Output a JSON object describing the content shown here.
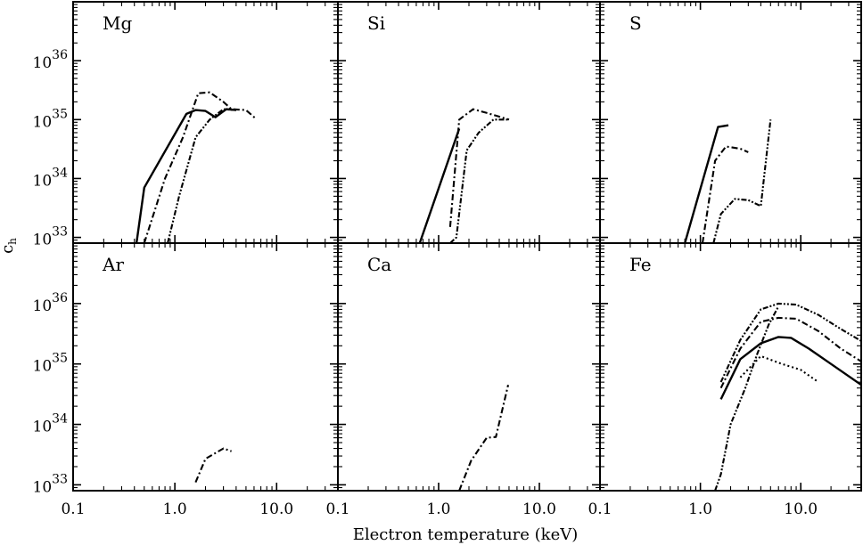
{
  "figure": {
    "xlabel": "Electron temperature (keV)",
    "ylabel": "c",
    "ylabel_sub": "h"
  },
  "chart_data": {
    "type": "line",
    "xlabel": "Electron temperature (keV)",
    "ylabel": "c_h",
    "xscale": "log",
    "yscale": "log",
    "xlim": [
      0.1,
      40
    ],
    "ylim": [
      8e+32,
      1e+37
    ],
    "x_tick_labels": [
      "0.1",
      "1.0",
      "10.0"
    ],
    "y_tick_labels": [
      {
        "base": "10",
        "exp": "33"
      },
      {
        "base": "10",
        "exp": "34"
      },
      {
        "base": "10",
        "exp": "35"
      },
      {
        "base": "10",
        "exp": "36"
      }
    ],
    "grid": false,
    "legend": "none",
    "panels": [
      {
        "label": "Mg",
        "series": [
          {
            "style": "solid",
            "points": [
              [
                0.42,
                8e+32
              ],
              [
                0.5,
                7e+33
              ],
              [
                1.3,
                1.25e+35
              ],
              [
                1.6,
                1.45e+35
              ],
              [
                2.0,
                1.4e+35
              ],
              [
                2.5,
                1.1e+35
              ],
              [
                3.2,
                1.5e+35
              ],
              [
                4.0,
                1.45e+35
              ]
            ]
          },
          {
            "style": "dashdot",
            "points": [
              [
                0.5,
                8e+32
              ],
              [
                0.8,
                1e+34
              ],
              [
                1.2,
                5e+34
              ],
              [
                1.7,
                2.8e+35
              ],
              [
                2.2,
                2.9e+35
              ],
              [
                3.0,
                2e+35
              ],
              [
                3.6,
                1.5e+35
              ],
              [
                5.0,
                1.45e+35
              ],
              [
                6.2,
                1.05e+35
              ]
            ]
          },
          {
            "style": "dashdotdot",
            "points": [
              [
                0.85,
                8e+32
              ],
              [
                1.1,
                5e+33
              ],
              [
                1.6,
                5e+34
              ],
              [
                2.2,
                1e+35
              ],
              [
                3.0,
                1.5e+35
              ],
              [
                4.0,
                1.45e+35
              ]
            ]
          }
        ]
      },
      {
        "label": "Si",
        "series": [
          {
            "style": "solid",
            "points": [
              [
                0.65,
                8e+32
              ],
              [
                1.6,
                7e+34
              ]
            ]
          },
          {
            "style": "dashdot",
            "points": [
              [
                1.3,
                1.5e+33
              ],
              [
                1.6,
                1e+35
              ],
              [
                2.2,
                1.5e+35
              ],
              [
                3.0,
                1.3e+35
              ],
              [
                5.0,
                1e+35
              ]
            ]
          },
          {
            "style": "dashdotdot",
            "points": [
              [
                1.3,
                8e+32
              ],
              [
                1.5,
                1e+33
              ],
              [
                1.9,
                3e+34
              ],
              [
                2.5,
                6e+34
              ],
              [
                3.5,
                1e+35
              ],
              [
                5.0,
                1e+35
              ]
            ]
          }
        ]
      },
      {
        "label": "S",
        "series": [
          {
            "style": "solid",
            "points": [
              [
                0.7,
                8e+32
              ],
              [
                1.5,
                7.5e+34
              ],
              [
                1.9,
                8e+34
              ]
            ]
          },
          {
            "style": "dashdot",
            "points": [
              [
                1.05,
                8e+32
              ],
              [
                1.4,
                2e+34
              ],
              [
                1.8,
                3.5e+34
              ],
              [
                2.5,
                3.2e+34
              ],
              [
                3.0,
                2.8e+34
              ]
            ]
          },
          {
            "style": "dashdotdot",
            "points": [
              [
                1.35,
                8e+32
              ],
              [
                1.6,
                2.5e+33
              ],
              [
                2.2,
                4.5e+33
              ],
              [
                3.0,
                4.3e+33
              ],
              [
                4.0,
                3.4e+33
              ],
              [
                5.0,
                1e+35
              ]
            ]
          }
        ]
      },
      {
        "label": "Ar",
        "series": [
          {
            "style": "dashdot",
            "points": [
              [
                1.6,
                1.1e+33
              ],
              [
                2.0,
                2.7e+33
              ],
              [
                3.0,
                4e+33
              ],
              [
                3.6,
                3.6e+33
              ]
            ]
          }
        ]
      },
      {
        "label": "Ca",
        "series": [
          {
            "style": "dashdot",
            "points": [
              [
                1.6,
                8e+32
              ],
              [
                2.1,
                2.5e+33
              ],
              [
                3.0,
                6e+33
              ],
              [
                3.7,
                6.2e+33
              ],
              [
                4.9,
                4.5e+34
              ]
            ]
          }
        ]
      },
      {
        "label": "Fe",
        "series": [
          {
            "style": "solid",
            "points": [
              [
                1.6,
                2.6e+34
              ],
              [
                2.5,
                1.2e+35
              ],
              [
                4.0,
                2.2e+35
              ],
              [
                6.0,
                2.8e+35
              ],
              [
                8.0,
                2.7e+35
              ],
              [
                12.0,
                1.8e+35
              ],
              [
                20.0,
                1e+35
              ],
              [
                40.0,
                4.5e+34
              ]
            ]
          },
          {
            "style": "dashdot",
            "points": [
              [
                1.6,
                4e+34
              ],
              [
                2.5,
                1.8e+35
              ],
              [
                4.0,
                5e+35
              ],
              [
                6.0,
                5.8e+35
              ],
              [
                9.0,
                5.6e+35
              ],
              [
                15.0,
                3.5e+35
              ],
              [
                25.0,
                1.8e+35
              ],
              [
                40.0,
                1.1e+35
              ]
            ]
          },
          {
            "style": "dashdotdot",
            "points": [
              [
                1.6,
                5e+34
              ],
              [
                2.5,
                2.5e+35
              ],
              [
                4.0,
                8e+35
              ],
              [
                6.0,
                1e+36
              ],
              [
                9.0,
                9.6e+35
              ],
              [
                15.0,
                6.5e+35
              ],
              [
                25.0,
                3.8e+35
              ],
              [
                40.0,
                2.4e+35
              ]
            ]
          },
          {
            "style": "dotted",
            "points": [
              [
                2.5,
                6e+34
              ],
              [
                4.0,
                1.35e+35
              ],
              [
                6.5,
                1e+35
              ],
              [
                10.0,
                8e+34
              ],
              [
                15.0,
                5e+34
              ]
            ]
          },
          {
            "style": "dashdotdot",
            "points": [
              [
                1.4,
                8e+32
              ],
              [
                1.6,
                1.5e+33
              ],
              [
                2.0,
                1e+34
              ],
              [
                2.8,
                4e+34
              ],
              [
                3.7,
                1.5e+35
              ],
              [
                4.8,
                4.5e+35
              ],
              [
                6.0,
                9e+35
              ]
            ]
          }
        ]
      }
    ]
  }
}
